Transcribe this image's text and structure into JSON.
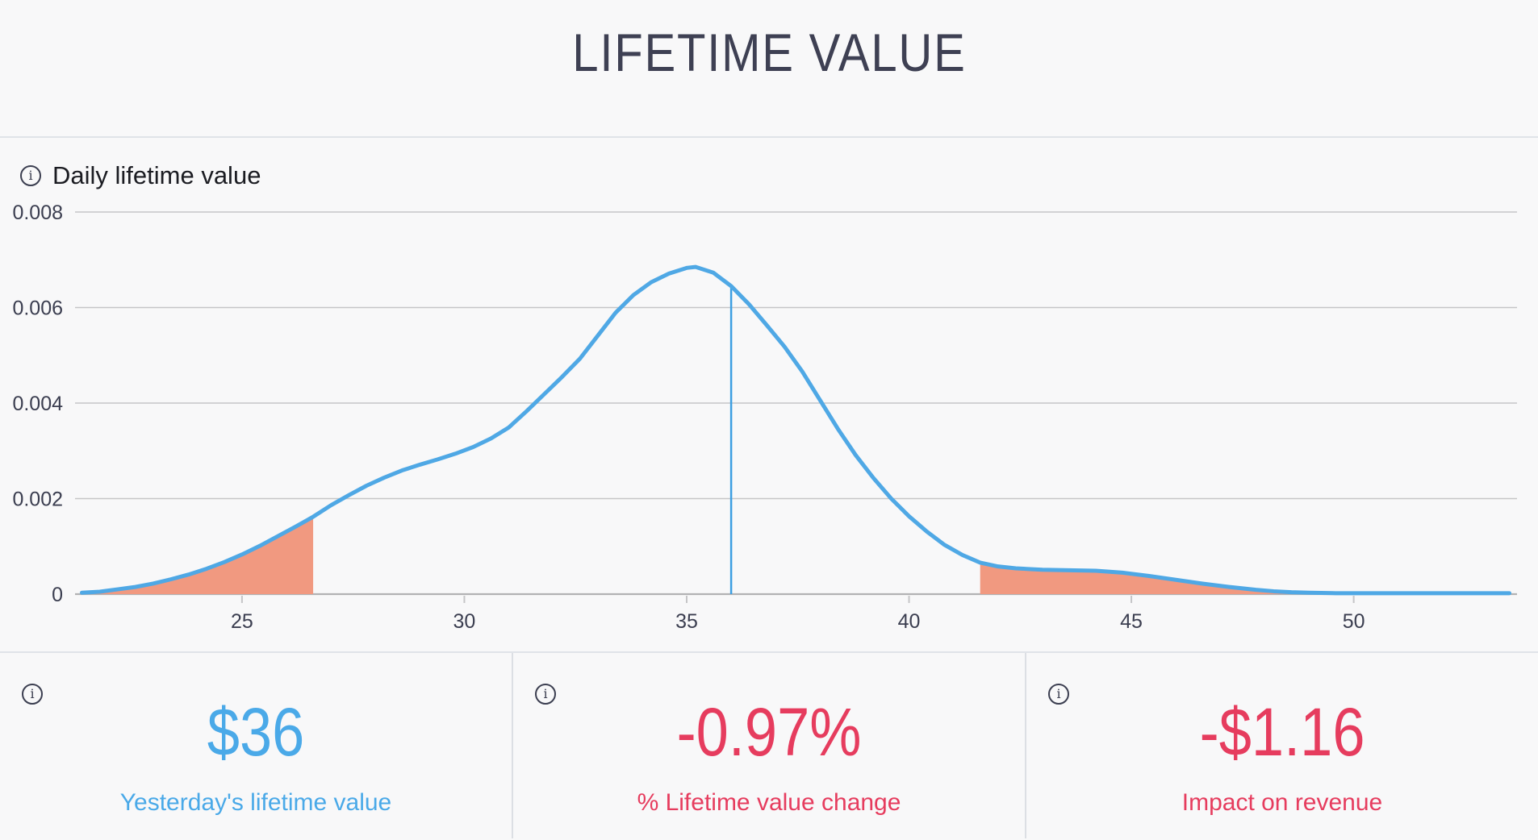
{
  "title": "LIFETIME VALUE",
  "chart": {
    "label": "Daily lifetime value"
  },
  "chart_data": {
    "type": "area",
    "title": "Daily lifetime value",
    "xlabel": "",
    "ylabel": "",
    "xlim": [
      21.3,
      53.6
    ],
    "ylim": [
      0,
      0.008
    ],
    "grid": true,
    "x_ticks": [
      25,
      30,
      35,
      40,
      45,
      50
    ],
    "y_ticks": [
      0,
      0.002,
      0.004,
      0.006,
      0.008
    ],
    "y_tick_labels": [
      "0",
      "0.002",
      "0.004",
      "0.006",
      "0.008"
    ],
    "marker": {
      "x": 36,
      "y": 0.00645
    },
    "shaded_regions": [
      {
        "from": 21.5,
        "to": 26.6
      },
      {
        "from": 41.6,
        "to": 48.6
      }
    ],
    "colors": {
      "line": "#4fa8e5",
      "marker_line": "#3d9fe2",
      "shade": "#f19980",
      "grid": "#c5c5c7",
      "axis": "#b2b2b4",
      "tick_text": "#3b3e50"
    },
    "series": [
      {
        "name": "daily-lifetime-value-density",
        "points": [
          [
            21.4,
            3e-05
          ],
          [
            21.8,
            5e-05
          ],
          [
            22.2,
            0.0001
          ],
          [
            22.6,
            0.00015
          ],
          [
            23.0,
            0.00022
          ],
          [
            23.4,
            0.00031
          ],
          [
            23.8,
            0.00041
          ],
          [
            24.2,
            0.00053
          ],
          [
            24.6,
            0.00067
          ],
          [
            25.0,
            0.00083
          ],
          [
            25.4,
            0.00101
          ],
          [
            25.8,
            0.00121
          ],
          [
            26.2,
            0.00141
          ],
          [
            26.6,
            0.00162
          ],
          [
            27.0,
            0.00186
          ],
          [
            27.4,
            0.00207
          ],
          [
            27.8,
            0.00227
          ],
          [
            28.2,
            0.00244
          ],
          [
            28.6,
            0.00259
          ],
          [
            29.0,
            0.00271
          ],
          [
            29.4,
            0.00282
          ],
          [
            29.8,
            0.00294
          ],
          [
            30.2,
            0.00308
          ],
          [
            30.6,
            0.00326
          ],
          [
            31.0,
            0.00349
          ],
          [
            31.4,
            0.00383
          ],
          [
            31.8,
            0.00419
          ],
          [
            32.2,
            0.00455
          ],
          [
            32.6,
            0.00493
          ],
          [
            33.0,
            0.00541
          ],
          [
            33.4,
            0.00589
          ],
          [
            33.8,
            0.00626
          ],
          [
            34.2,
            0.00653
          ],
          [
            34.6,
            0.00671
          ],
          [
            35.0,
            0.00683
          ],
          [
            35.2,
            0.00685
          ],
          [
            35.6,
            0.00673
          ],
          [
            36.0,
            0.00645
          ],
          [
            36.4,
            0.00607
          ],
          [
            36.8,
            0.00563
          ],
          [
            37.2,
            0.00518
          ],
          [
            37.6,
            0.00466
          ],
          [
            38.0,
            0.00406
          ],
          [
            38.4,
            0.00346
          ],
          [
            38.8,
            0.00291
          ],
          [
            39.2,
            0.00243
          ],
          [
            39.6,
            0.002
          ],
          [
            40.0,
            0.00163
          ],
          [
            40.4,
            0.00131
          ],
          [
            40.8,
            0.00103
          ],
          [
            41.2,
            0.00082
          ],
          [
            41.6,
            0.00066
          ],
          [
            42.0,
            0.00058
          ],
          [
            42.4,
            0.00054
          ],
          [
            43.0,
            0.00051
          ],
          [
            43.6,
            0.0005
          ],
          [
            44.2,
            0.00049
          ],
          [
            44.8,
            0.00045
          ],
          [
            45.4,
            0.00038
          ],
          [
            46.0,
            0.0003
          ],
          [
            46.6,
            0.00022
          ],
          [
            47.2,
            0.00015
          ],
          [
            47.8,
            9e-05
          ],
          [
            48.2,
            6e-05
          ],
          [
            48.6,
            4e-05
          ],
          [
            49.0,
            3e-05
          ],
          [
            49.6,
            2e-05
          ],
          [
            50.4,
            2e-05
          ],
          [
            51.4,
            2e-05
          ],
          [
            52.4,
            2e-05
          ],
          [
            53.5,
            2e-05
          ]
        ]
      }
    ]
  },
  "cards": [
    {
      "value": "$36",
      "label": "Yesterday's lifetime value",
      "color": "#4aa9e8"
    },
    {
      "value": "-0.97%",
      "label": "% Lifetime value change",
      "color": "#e63c5e"
    },
    {
      "value": "-$1.16",
      "label": "Impact on revenue",
      "color": "#e63c5e"
    }
  ]
}
